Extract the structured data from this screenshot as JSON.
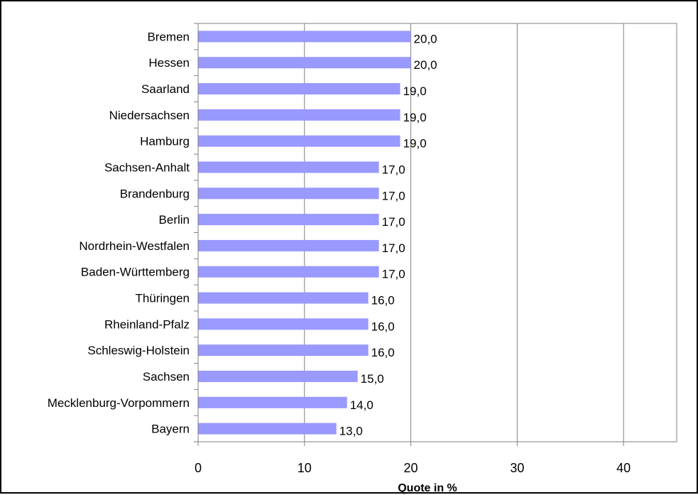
{
  "chart_data": {
    "type": "bar",
    "orientation": "horizontal",
    "categories": [
      "Bremen",
      "Hessen",
      "Saarland",
      "Niedersachsen",
      "Hamburg",
      "Sachsen-Anhalt",
      "Brandenburg",
      "Berlin",
      "Nordrhein-Westfalen",
      "Baden-Württemberg",
      "Thüringen",
      "Rheinland-Pfalz",
      "Schleswig-Holstein",
      "Sachsen",
      "Mecklenburg-Vorpommern",
      "Bayern"
    ],
    "values": [
      20,
      20,
      19,
      19,
      19,
      17,
      17,
      17,
      17,
      17,
      16,
      16,
      16,
      15,
      14,
      13
    ],
    "value_labels": [
      "20,0",
      "20,0",
      "19,0",
      "19,0",
      "19,0",
      "17,0",
      "17,0",
      "17,0",
      "17,0",
      "17,0",
      "16,0",
      "16,0",
      "16,0",
      "15,0",
      "14,0",
      "13,0"
    ],
    "title": "",
    "xlabel": "Quote in %",
    "ylabel": "",
    "xlim": [
      0,
      45
    ],
    "x_ticks": [
      0,
      10,
      20,
      30,
      40
    ],
    "x_tick_labels": [
      "0",
      "10",
      "20",
      "30",
      "40"
    ],
    "grid": "vertical",
    "legend": "none",
    "bar_color": "#9999ff",
    "grid_color": "#808080",
    "axis_color": "#808080"
  }
}
